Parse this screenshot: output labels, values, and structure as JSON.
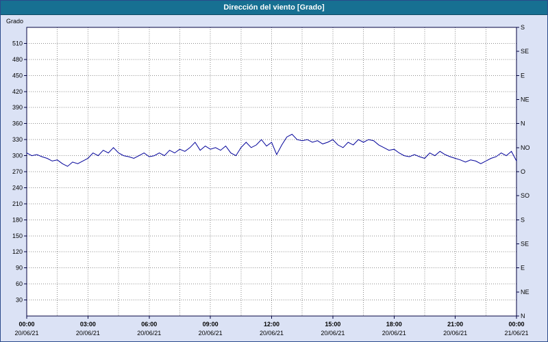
{
  "title_bar": {
    "title": "Dirección del viento [Grado]"
  },
  "colors": {
    "title_bar_bg": "#177092",
    "title_text": "#ffffff",
    "page_bg": "#dbe2f5",
    "plot_bg": "#ffffff",
    "line": "#000099",
    "grid": "#8a8a8a",
    "axis": "#000040",
    "text": "#000000"
  },
  "chart_data": {
    "type": "line",
    "title": "Dirección del viento [Grado]",
    "ylabel": "Grado",
    "ylim": [
      0,
      540
    ],
    "xlim_hours": [
      0,
      24
    ],
    "y_ticks": [
      510,
      480,
      450,
      420,
      390,
      360,
      330,
      300,
      270,
      240,
      210,
      180,
      150,
      120,
      90,
      60,
      30
    ],
    "right_axis": [
      {
        "deg": 540,
        "label": "S"
      },
      {
        "deg": 495,
        "label": "SE"
      },
      {
        "deg": 450,
        "label": "E"
      },
      {
        "deg": 405,
        "label": "NE"
      },
      {
        "deg": 360,
        "label": "N"
      },
      {
        "deg": 315,
        "label": "NO"
      },
      {
        "deg": 270,
        "label": "O"
      },
      {
        "deg": 225,
        "label": "SO"
      },
      {
        "deg": 180,
        "label": "S"
      },
      {
        "deg": 135,
        "label": "SE"
      },
      {
        "deg": 90,
        "label": "E"
      },
      {
        "deg": 45,
        "label": "NE"
      },
      {
        "deg": 0,
        "label": "N"
      }
    ],
    "x_ticks": [
      {
        "time": "00:00",
        "date": "20/06/21"
      },
      {
        "time": "03:00",
        "date": "20/06/21"
      },
      {
        "time": "06:00",
        "date": "20/06/21"
      },
      {
        "time": "09:00",
        "date": "20/06/21"
      },
      {
        "time": "12:00",
        "date": "20/06/21"
      },
      {
        "time": "15:00",
        "date": "20/06/21"
      },
      {
        "time": "18:00",
        "date": "20/06/21"
      },
      {
        "time": "21:00",
        "date": "20/06/21"
      },
      {
        "time": "00:00",
        "date": "21/06/21"
      }
    ],
    "x_tick_interval_hours": 3,
    "grid": {
      "v_interval_hours": 1.5,
      "h_interval_deg": 30
    },
    "sample_interval_hours": 0.25,
    "values": [
      305,
      300,
      302,
      298,
      295,
      290,
      292,
      285,
      280,
      288,
      285,
      290,
      295,
      305,
      300,
      310,
      305,
      315,
      305,
      300,
      298,
      295,
      300,
      305,
      298,
      300,
      305,
      300,
      310,
      305,
      312,
      308,
      315,
      325,
      310,
      318,
      312,
      315,
      310,
      318,
      305,
      300,
      315,
      325,
      315,
      320,
      330,
      318,
      325,
      302,
      320,
      335,
      340,
      330,
      328,
      330,
      325,
      328,
      322,
      325,
      330,
      320,
      315,
      325,
      320,
      330,
      325,
      330,
      328,
      320,
      315,
      310,
      312,
      305,
      300,
      298,
      302,
      298,
      295,
      305,
      300,
      308,
      302,
      298,
      295,
      292,
      288,
      292,
      290,
      285,
      290,
      295,
      298,
      305,
      300,
      308,
      290
    ]
  }
}
